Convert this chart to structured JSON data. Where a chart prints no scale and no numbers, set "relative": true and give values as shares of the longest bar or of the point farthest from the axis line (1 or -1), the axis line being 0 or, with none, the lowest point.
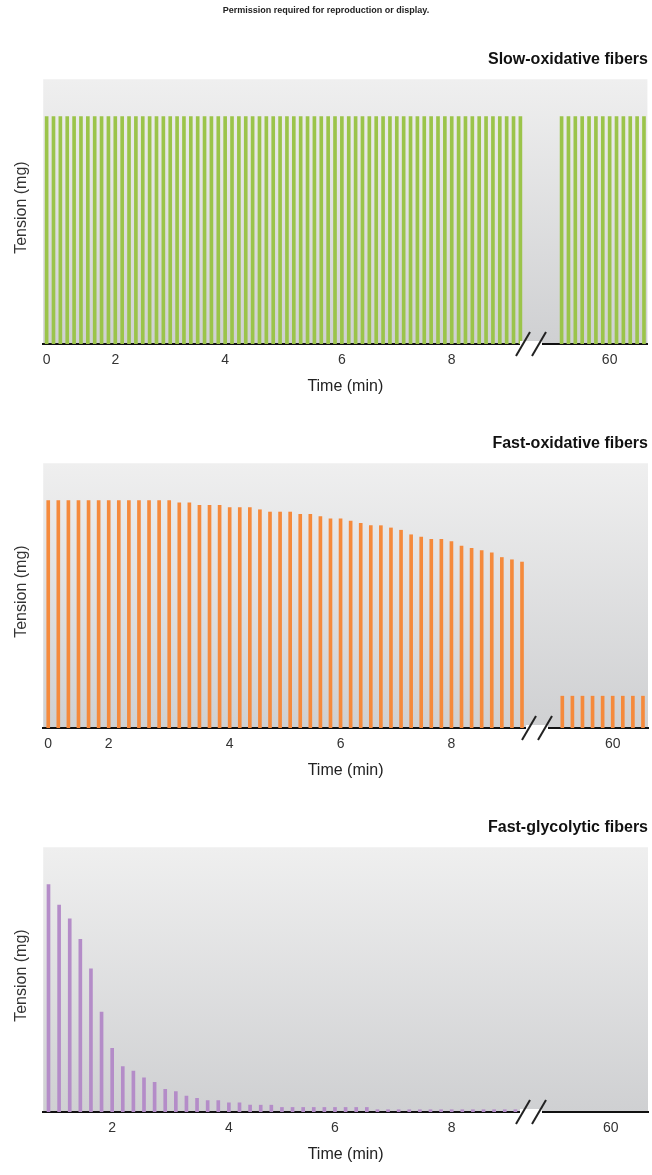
{
  "chart_data": [
    {
      "type": "bar",
      "title": "Slow-oxidative fibers",
      "xlabel": "Time (min)",
      "ylabel": "Tension (mg)",
      "relative": true,
      "color": "#9bc44a",
      "annotations": [
        "Permission required for reproduction or display."
      ],
      "categories": [
        "0",
        null,
        null,
        null,
        null,
        null,
        null,
        null,
        null,
        null,
        "2",
        null,
        null,
        null,
        null,
        null,
        null,
        null,
        null,
        null,
        null,
        null,
        null,
        null,
        null,
        null,
        "4",
        null,
        null,
        null,
        null,
        null,
        null,
        null,
        null,
        null,
        null,
        null,
        null,
        null,
        null,
        null,
        null,
        "6",
        null,
        null,
        null,
        null,
        null,
        null,
        null,
        null,
        null,
        null,
        null,
        null,
        null,
        null,
        null,
        "8",
        null,
        null,
        null,
        null,
        null,
        null,
        null,
        null,
        null,
        null,
        null,
        null,
        null,
        null,
        null,
        null,
        null,
        null,
        null,
        null,
        null,
        null,
        "60",
        null,
        null,
        null,
        null,
        null
      ],
      "values": [
        1,
        1,
        1,
        1,
        1,
        1,
        1,
        1,
        1,
        1,
        1,
        1,
        1,
        1,
        1,
        1,
        1,
        1,
        1,
        1,
        1,
        1,
        1,
        1,
        1,
        1,
        1,
        1,
        1,
        1,
        1,
        1,
        1,
        1,
        1,
        1,
        1,
        1,
        1,
        1,
        1,
        1,
        1,
        1,
        1,
        1,
        1,
        1,
        1,
        1,
        1,
        1,
        1,
        1,
        1,
        1,
        1,
        1,
        1,
        1,
        1,
        1,
        1,
        1,
        1,
        1,
        1,
        1,
        1,
        1,
        null,
        null,
        null,
        null,
        null,
        1,
        1,
        1,
        1,
        1,
        1,
        1,
        1,
        1,
        1,
        1,
        1,
        1
      ]
    },
    {
      "type": "bar",
      "title": "Fast-oxidative fibers",
      "xlabel": "Time (min)",
      "ylabel": "Tension (mg)",
      "relative": true,
      "color": "#f58a3c",
      "categories": [
        "0",
        null,
        null,
        null,
        null,
        null,
        "2",
        null,
        null,
        null,
        null,
        null,
        null,
        null,
        null,
        null,
        null,
        null,
        "4",
        null,
        null,
        null,
        null,
        null,
        null,
        null,
        null,
        null,
        null,
        "6",
        null,
        null,
        null,
        null,
        null,
        null,
        null,
        null,
        null,
        null,
        "8",
        null,
        null,
        null,
        null,
        null,
        null,
        null,
        null,
        null,
        null,
        null,
        null,
        null,
        null,
        null,
        "60",
        null,
        null,
        null
      ],
      "values": [
        1,
        1,
        1,
        1,
        1,
        1,
        1,
        1,
        1,
        1,
        1,
        1,
        1,
        0.99,
        0.99,
        0.98,
        0.98,
        0.98,
        0.97,
        0.97,
        0.97,
        0.96,
        0.95,
        0.95,
        0.95,
        0.94,
        0.94,
        0.93,
        0.92,
        0.92,
        0.91,
        0.9,
        0.89,
        0.89,
        0.88,
        0.87,
        0.85,
        0.84,
        0.83,
        0.83,
        0.82,
        0.8,
        0.79,
        0.78,
        0.77,
        0.75,
        0.74,
        0.73,
        null,
        null,
        null,
        0.14,
        0.14,
        0.14,
        0.14,
        0.14,
        0.14,
        0.14,
        0.14,
        0.14
      ]
    },
    {
      "type": "bar",
      "title": "Fast-glycolytic fibers",
      "xlabel": "Time (min)",
      "ylabel": "Tension (mg)",
      "relative": true,
      "color": "#b48cc8",
      "categories": [
        null,
        null,
        null,
        null,
        null,
        null,
        "2",
        null,
        null,
        null,
        null,
        null,
        null,
        null,
        null,
        null,
        null,
        "4",
        null,
        null,
        null,
        null,
        null,
        null,
        null,
        null,
        null,
        "6",
        null,
        null,
        null,
        null,
        null,
        null,
        null,
        null,
        null,
        null,
        "8",
        null,
        null,
        null,
        null,
        null,
        null,
        null,
        null,
        null,
        null,
        null,
        null,
        null,
        null,
        "60",
        null,
        null,
        null
      ],
      "values": [
        1,
        0.91,
        0.85,
        0.76,
        0.63,
        0.44,
        0.28,
        0.2,
        0.18,
        0.15,
        0.13,
        0.1,
        0.09,
        0.07,
        0.06,
        0.05,
        0.05,
        0.04,
        0.04,
        0.03,
        0.03,
        0.03,
        0.02,
        0.02,
        0.02,
        0.02,
        0.02,
        0.02,
        0.02,
        0.02,
        0.02,
        0.01,
        0.01,
        0.01,
        0.01,
        0.01,
        0.01,
        0.01,
        0.01,
        0.01,
        0.01,
        0.01,
        0.01,
        0.01,
        0.01,
        null,
        null,
        null,
        null,
        null,
        null,
        null,
        null,
        null,
        null,
        null,
        null
      ]
    }
  ]
}
